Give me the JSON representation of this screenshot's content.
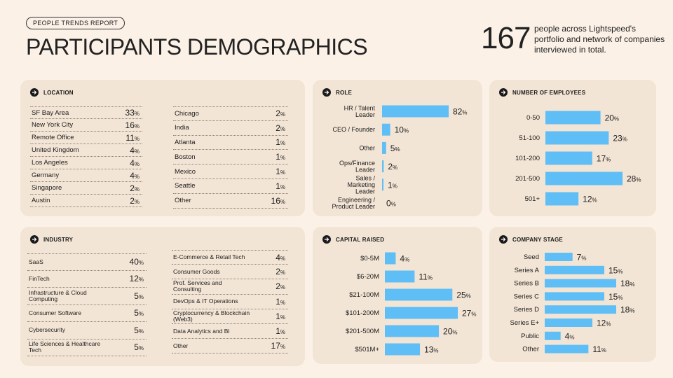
{
  "header": {
    "tag": "PEOPLE TRENDS REPORT",
    "title": "PARTICIPANTS DEMOGRAPHICS",
    "total_count": "167",
    "total_text": "people across Lightspeed's portfolio and network of companies interviewed in total."
  },
  "location": {
    "title": "LOCATION",
    "col1": [
      {
        "label": "SF Bay Area",
        "value": "33",
        "unit": "%"
      },
      {
        "label": "New York City",
        "value": "16",
        "unit": "%"
      },
      {
        "label": "Remote Office",
        "value": "11",
        "unit": "%"
      },
      {
        "label": "United Kingdom",
        "value": "4",
        "unit": "%"
      },
      {
        "label": "Los Angeles",
        "value": "4",
        "unit": "%"
      },
      {
        "label": "Germany",
        "value": "4",
        "unit": "%"
      },
      {
        "label": "Singapore",
        "value": "2",
        "unit": "%"
      },
      {
        "label": "Austin",
        "value": "2",
        "unit": "%"
      }
    ],
    "col2": [
      {
        "label": "Chicago",
        "value": "2",
        "unit": "%"
      },
      {
        "label": "India",
        "value": "2",
        "unit": "%"
      },
      {
        "label": "Atlanta",
        "value": "1",
        "unit": "%"
      },
      {
        "label": "Boston",
        "value": "1",
        "unit": "%"
      },
      {
        "label": "Mexico",
        "value": "1",
        "unit": "%"
      },
      {
        "label": "Seattle",
        "value": "1",
        "unit": "%"
      },
      {
        "label": "Other",
        "value": "16",
        "unit": "%"
      }
    ]
  },
  "industry": {
    "title": "INDUSTRY",
    "col1": [
      {
        "label": "SaaS",
        "value": "40",
        "unit": "%"
      },
      {
        "label": "FinTech",
        "value": "12",
        "unit": "%"
      },
      {
        "label": "Infrastructure & Cloud Computing",
        "value": "5",
        "unit": "%"
      },
      {
        "label": "Consumer Software",
        "value": "5",
        "unit": "%"
      },
      {
        "label": "Cybersecurity",
        "value": "5",
        "unit": "%"
      },
      {
        "label": "Life Sciences & Healthcare Tech",
        "value": "5",
        "unit": "%"
      }
    ],
    "col2": [
      {
        "label": "E-Commerce & Retail Tech",
        "value": "4",
        "unit": "%"
      },
      {
        "label": "Consumer Goods",
        "value": "2",
        "unit": "%"
      },
      {
        "label": "Prof. Services and Consulting",
        "value": "2",
        "unit": "%"
      },
      {
        "label": "DevOps & IT Operations",
        "value": "1",
        "unit": "%"
      },
      {
        "label": "Cryptocurrency & Blockchain (Web3)",
        "value": "1",
        "unit": "%"
      },
      {
        "label": "Data Analytics and BI",
        "value": "1",
        "unit": "%"
      },
      {
        "label": "Other",
        "value": "17",
        "unit": "%"
      }
    ]
  },
  "colors": {
    "bar": "#5ebef5",
    "card": "#f3e5d5",
    "background": "#fbf1e7"
  },
  "chart_data": [
    {
      "id": "role",
      "type": "bar",
      "orientation": "horizontal",
      "title": "ROLE",
      "categories": [
        "HR / Talent Leader",
        "CEO / Founder",
        "Other",
        "Ops/Finance Leader",
        "Sales / Marketing Leader",
        "Engineering / Product Leader"
      ],
      "values": [
        82,
        10,
        5,
        2,
        1,
        0
      ],
      "unit": "%",
      "xlim": [
        0,
        82
      ]
    },
    {
      "id": "employees",
      "type": "bar",
      "orientation": "horizontal",
      "title": "NUMBER OF EMPLOYEES",
      "categories": [
        "0-50",
        "51-100",
        "101-200",
        "201-500",
        "501+"
      ],
      "values": [
        20,
        23,
        17,
        28,
        12
      ],
      "unit": "%",
      "xlim": [
        0,
        28
      ]
    },
    {
      "id": "capital",
      "type": "bar",
      "orientation": "horizontal",
      "title": "CAPITAL RAISED",
      "categories": [
        "$0-5M",
        "$6-20M",
        "$21-100M",
        "$101-200M",
        "$201-500M",
        "$501M+"
      ],
      "values": [
        4,
        11,
        25,
        27,
        20,
        13
      ],
      "unit": "%",
      "xlim": [
        0,
        27
      ]
    },
    {
      "id": "stage",
      "type": "bar",
      "orientation": "horizontal",
      "title": "COMPANY STAGE",
      "categories": [
        "Seed",
        "Series A",
        "Series B",
        "Series C",
        "Series D",
        "Series E+",
        "Public",
        "Other"
      ],
      "values": [
        7,
        15,
        18,
        15,
        18,
        12,
        4,
        11
      ],
      "unit": "%",
      "xlim": [
        0,
        18
      ]
    }
  ]
}
